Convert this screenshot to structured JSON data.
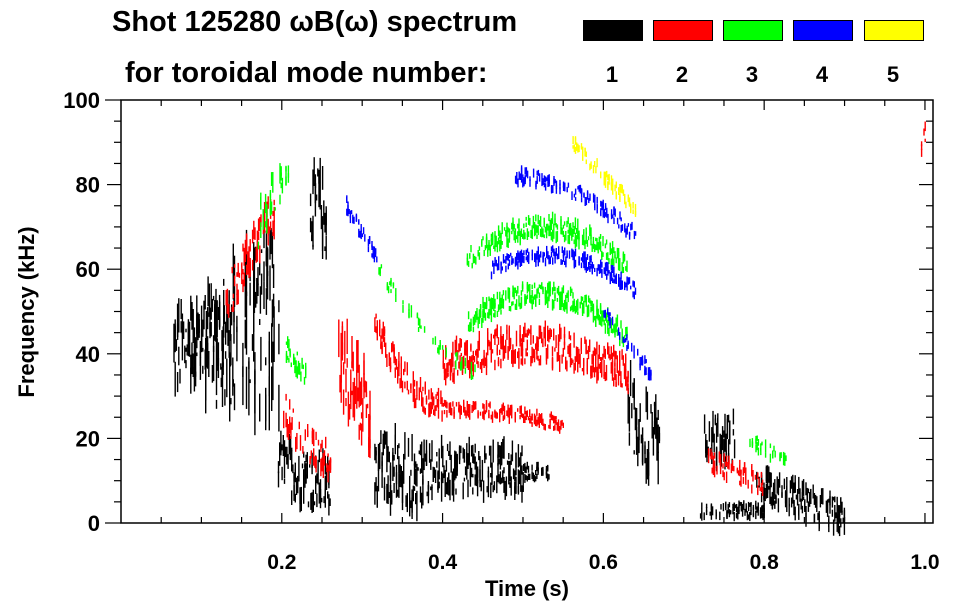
{
  "chart_data": {
    "type": "heatmap",
    "title": "Shot 125280 ωB(ω) spectrum",
    "subtitle": "for toroidal mode number:",
    "xlabel": "Time (s)",
    "ylabel": "Frequency (kHz)",
    "xlim": [
      0,
      1.01
    ],
    "ylim": [
      0,
      100
    ],
    "xticks": [
      0.2,
      0.4,
      0.6,
      0.8,
      1.0
    ],
    "xtick_labels": [
      "0.2",
      "0.4",
      "0.6",
      "0.8",
      "1.0"
    ],
    "yticks": [
      0,
      20,
      40,
      60,
      80,
      100
    ],
    "ytick_labels": [
      "0",
      "20",
      "40",
      "60",
      "80",
      "100"
    ],
    "legend": [
      {
        "label": "1",
        "color": "#000000"
      },
      {
        "label": "2",
        "color": "#ff0000"
      },
      {
        "label": "3",
        "color": "#00ff00"
      },
      {
        "label": "4",
        "color": "#0000ff"
      },
      {
        "label": "5",
        "color": "#ffff00"
      }
    ],
    "legend_placement": "top-right",
    "features": [
      {
        "mode": 1,
        "t": [
          0.065,
          0.14
        ],
        "f": [
          40,
          44,
          42
        ],
        "spread": 12,
        "density": 1.0
      },
      {
        "mode": 1,
        "t": [
          0.1,
          0.2
        ],
        "f": [
          35,
          45,
          40
        ],
        "spread": 22,
        "density": 0.5
      },
      {
        "mode": 1,
        "t": [
          0.165,
          0.19
        ],
        "f": [
          58,
          60,
          55
        ],
        "spread": 12,
        "density": 0.9
      },
      {
        "mode": 1,
        "t": [
          0.195,
          0.26
        ],
        "f": [
          14,
          11,
          9
        ],
        "spread": 8,
        "density": 1.0
      },
      {
        "mode": 1,
        "t": [
          0.235,
          0.255
        ],
        "f": [
          72,
          75,
          70
        ],
        "spread": 11,
        "density": 1.0
      },
      {
        "mode": 1,
        "t": [
          0.315,
          0.38
        ],
        "f": [
          14,
          12,
          10
        ],
        "spread": 10,
        "density": 1.0
      },
      {
        "mode": 1,
        "t": [
          0.38,
          0.5
        ],
        "f": [
          12,
          13,
          12
        ],
        "spread": 7,
        "density": 0.9
      },
      {
        "mode": 1,
        "t": [
          0.5,
          0.54
        ],
        "f": [
          12,
          12,
          12
        ],
        "spread": 2,
        "density": 0.6
      },
      {
        "mode": 1,
        "t": [
          0.63,
          0.67
        ],
        "f": [
          28,
          22,
          18
        ],
        "spread": 12,
        "density": 0.9
      },
      {
        "mode": 1,
        "t": [
          0.725,
          0.765
        ],
        "f": [
          22,
          20,
          20
        ],
        "spread": 7,
        "density": 0.9
      },
      {
        "mode": 1,
        "t": [
          0.72,
          0.8
        ],
        "f": [
          3,
          3,
          3
        ],
        "spread": 2,
        "density": 0.8
      },
      {
        "mode": 1,
        "t": [
          0.79,
          0.9
        ],
        "f": [
          10,
          5,
          1
        ],
        "spread": 5,
        "density": 0.9
      },
      {
        "mode": 2,
        "t": [
          0.13,
          0.19
        ],
        "f": [
          52,
          64,
          74
        ],
        "spread": 6,
        "density": 0.7
      },
      {
        "mode": 2,
        "t": [
          0.2,
          0.26
        ],
        "f": [
          28,
          19,
          15
        ],
        "spread": 5,
        "density": 0.8
      },
      {
        "mode": 2,
        "t": [
          0.27,
          0.31
        ],
        "f": [
          40,
          32,
          25
        ],
        "spread": 12,
        "density": 1.0
      },
      {
        "mode": 2,
        "t": [
          0.315,
          0.4
        ],
        "f": [
          47,
          33,
          27
        ],
        "spread": 4,
        "density": 0.9
      },
      {
        "mode": 2,
        "t": [
          0.4,
          0.63
        ],
        "f": [
          37,
          42,
          35
        ],
        "spread": 5,
        "density": 1.0
      },
      {
        "mode": 2,
        "t": [
          0.4,
          0.55
        ],
        "f": [
          27,
          26,
          23
        ],
        "spread": 2,
        "density": 0.8
      },
      {
        "mode": 2,
        "t": [
          0.73,
          0.8
        ],
        "f": [
          15,
          12,
          9
        ],
        "spread": 3,
        "density": 0.7
      },
      {
        "mode": 2,
        "t": [
          0.995,
          1.0
        ],
        "f": [
          88,
          91,
          93
        ],
        "spread": 3,
        "density": 0.8
      },
      {
        "mode": 3,
        "t": [
          0.17,
          0.21
        ],
        "f": [
          70,
          78,
          84
        ],
        "spread": 6,
        "density": 0.5
      },
      {
        "mode": 3,
        "t": [
          0.205,
          0.23
        ],
        "f": [
          41,
          38,
          35
        ],
        "spread": 3,
        "density": 0.7
      },
      {
        "mode": 3,
        "t": [
          0.32,
          0.44
        ],
        "f": [
          60,
          45,
          35
        ],
        "spread": 2,
        "density": 0.4
      },
      {
        "mode": 3,
        "t": [
          0.43,
          0.63
        ],
        "f": [
          47,
          54,
          43
        ],
        "spread": 3,
        "density": 0.9
      },
      {
        "mode": 3,
        "t": [
          0.43,
          0.63
        ],
        "f": [
          62,
          70,
          60
        ],
        "spread": 3,
        "density": 0.9
      },
      {
        "mode": 3,
        "t": [
          0.78,
          0.83
        ],
        "f": [
          20,
          17,
          15
        ],
        "spread": 2,
        "density": 0.6
      },
      {
        "mode": 4,
        "t": [
          0.49,
          0.64
        ],
        "f": [
          82,
          78,
          68
        ],
        "spread": 2,
        "density": 0.8
      },
      {
        "mode": 4,
        "t": [
          0.46,
          0.64
        ],
        "f": [
          60,
          63,
          55
        ],
        "spread": 2,
        "density": 0.9
      },
      {
        "mode": 4,
        "t": [
          0.28,
          0.32
        ],
        "f": [
          75,
          68,
          62
        ],
        "spread": 2,
        "density": 0.6
      },
      {
        "mode": 4,
        "t": [
          0.6,
          0.66
        ],
        "f": [
          50,
          42,
          35
        ],
        "spread": 2,
        "density": 0.5
      },
      {
        "mode": 5,
        "t": [
          0.56,
          0.64
        ],
        "f": [
          90,
          82,
          74
        ],
        "spread": 2,
        "density": 0.7
      }
    ]
  }
}
